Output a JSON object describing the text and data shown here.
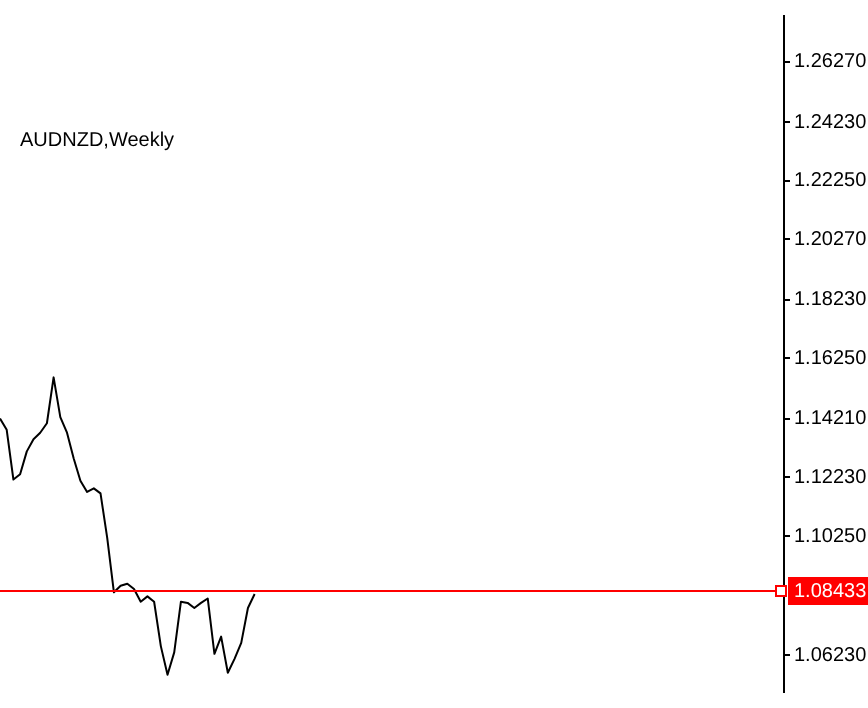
{
  "chart_data": {
    "type": "line",
    "title": "AUDNZD,Weekly",
    "categories": [
      null,
      null,
      null,
      null,
      null,
      null,
      null,
      null,
      null,
      null,
      null,
      null,
      null,
      null,
      null,
      null,
      null,
      null,
      null,
      null,
      null,
      null,
      null,
      null,
      null,
      null,
      null,
      null,
      null,
      null,
      null,
      null,
      null,
      null,
      null,
      null,
      null,
      null,
      null,
      null,
      null,
      null,
      null,
      null,
      null,
      null,
      null,
      null,
      null,
      null,
      null,
      null,
      null,
      null,
      null,
      null,
      null,
      null,
      null,
      null,
      null,
      null,
      null,
      null,
      null,
      null,
      null,
      null,
      null,
      null,
      null,
      null,
      null,
      null,
      null,
      null,
      null,
      null,
      null,
      null,
      null,
      null,
      null,
      null,
      null,
      null,
      null,
      null,
      null,
      null,
      null,
      null,
      null,
      null,
      null,
      null,
      null,
      null,
      null,
      null,
      null,
      null,
      null,
      null,
      null,
      null,
      null,
      null,
      null,
      null,
      null,
      null,
      null,
      null,
      null,
      null,
      null,
      null
    ],
    "series": [
      {
        "color": "#000000",
        "values": [
          1.1422,
          1.1384,
          1.1216,
          1.1234,
          1.1311,
          1.1352,
          1.1374,
          1.1406,
          1.1561,
          1.1427,
          1.1374,
          1.1287,
          1.1212,
          1.1174,
          1.1186,
          1.1169,
          1.1019,
          1.0835,
          1.0857,
          1.0864,
          1.0846,
          1.0803,
          1.0821,
          1.0803,
          1.0653,
          1.0556,
          1.0632,
          1.0803,
          1.0799,
          1.0782,
          1.0799,
          1.0814,
          1.0627,
          1.0685,
          1.0563,
          1.061,
          1.0664,
          1.0782,
          1.0829,
          null,
          null,
          null,
          null,
          null,
          null,
          null,
          null,
          null,
          null,
          null,
          null,
          null,
          null,
          null,
          null,
          null,
          null,
          null,
          null,
          null,
          null,
          null,
          null,
          null,
          null,
          null,
          null,
          null,
          null,
          null,
          null,
          null,
          null,
          null,
          null,
          null,
          null,
          null,
          null,
          null,
          null,
          null,
          null,
          null,
          null,
          null,
          null,
          null,
          null,
          null,
          null,
          null,
          null,
          null,
          null,
          null,
          null,
          null,
          null,
          null,
          null,
          null,
          null,
          null,
          null,
          null,
          null,
          null,
          null,
          null,
          null,
          null,
          null,
          null,
          null,
          null,
          null,
          null
        ]
      }
    ],
    "ylim": [
      1.0498,
      1.2782
    ],
    "yticks": [
      {
        "value": 1.0623,
        "label": "1.06230"
      },
      {
        "value": 1.1025,
        "label": "1.10250"
      },
      {
        "value": 1.1223,
        "label": "1.12230"
      },
      {
        "value": 1.1421,
        "label": "1.14210"
      },
      {
        "value": 1.1625,
        "label": "1.16250"
      },
      {
        "value": 1.1823,
        "label": "1.18230"
      },
      {
        "value": 1.2027,
        "label": "1.20270"
      },
      {
        "value": 1.2225,
        "label": "1.22250"
      },
      {
        "value": 1.2423,
        "label": "1.24230"
      },
      {
        "value": 1.2627,
        "label": "1.26270"
      }
    ],
    "ref_lines": [
      {
        "axis": "y",
        "value": 1.08433,
        "label": "1.08433",
        "color": "#ff0000"
      }
    ],
    "legend": false,
    "grid": false
  }
}
